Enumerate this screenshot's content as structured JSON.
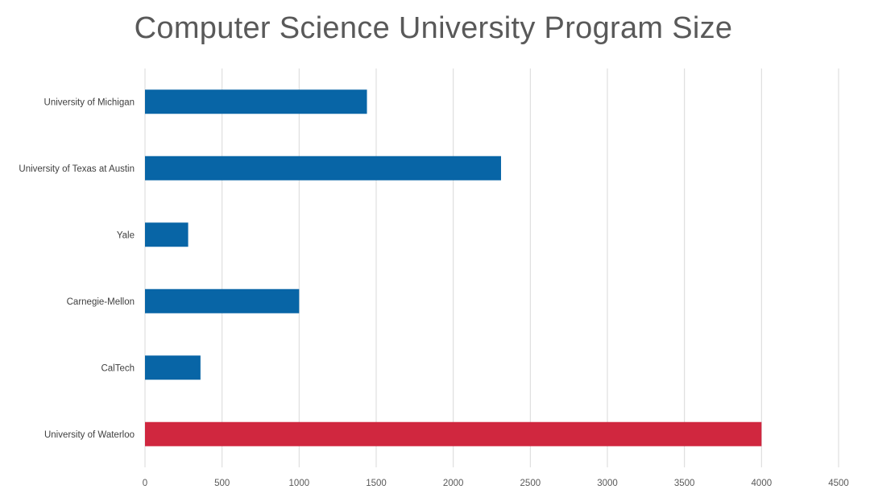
{
  "chart_data": {
    "type": "bar",
    "orientation": "horizontal",
    "title": "Computer Science University Program Size",
    "categories": [
      "University of Michigan",
      "University of Texas at Austin",
      "Yale",
      "Carnegie-Mellon",
      "CalTech",
      "University of Waterloo"
    ],
    "values": [
      1440,
      2310,
      280,
      1000,
      360,
      4000
    ],
    "bar_colors": [
      "#0865A6",
      "#0865A6",
      "#0865A6",
      "#0865A6",
      "#0865A6",
      "#D0273F"
    ],
    "xticks": [
      "0",
      "500",
      "1000",
      "1500",
      "2000",
      "2500",
      "3000",
      "3500",
      "4000",
      "4500"
    ],
    "xlim": [
      0,
      4500
    ],
    "xlabel": "",
    "ylabel": "",
    "grid": "vertical"
  }
}
